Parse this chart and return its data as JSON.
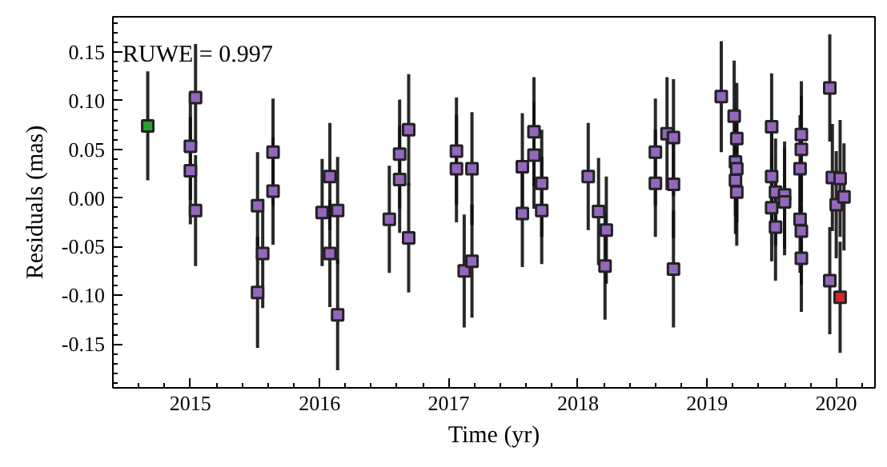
{
  "chart_data": {
    "type": "scatter",
    "xlabel": "Time (yr)",
    "ylabel": "Residuals (mas)",
    "annotations": [
      "RUWE = 0.997"
    ],
    "xlim": [
      2014.4,
      2020.3
    ],
    "xticks": [
      2015,
      2016,
      2017,
      2018,
      2019,
      2020
    ],
    "ylim": [
      -0.195,
      0.186
    ],
    "yticks": [
      -0.15,
      {
        "value": -0.1,
        "label": "-0.10"
      },
      -0.05,
      {
        "value": 0.0,
        "label": "0.00"
      },
      0.05,
      {
        "value": 0.1,
        "label": "0.10"
      },
      0.15
    ],
    "marker": "square",
    "series": [
      {
        "color": "#2ca02c",
        "x": [
          2014.67
        ],
        "values": [
          0.074
        ],
        "errors": [
          0.056
        ]
      },
      {
        "color": "#9467bd",
        "x": [
          2015.0,
          2015.0,
          2015.04,
          2015.04,
          2015.52,
          2015.52,
          2015.56,
          2015.64,
          2015.64,
          2016.02,
          2016.08,
          2016.08,
          2016.14,
          2016.14,
          2016.54,
          2016.62,
          2016.62,
          2016.69,
          2016.69,
          2017.06,
          2017.06,
          2017.12,
          2017.18,
          2017.18,
          2017.57,
          2017.57,
          2017.66,
          2017.66,
          2017.72,
          2017.72,
          2018.08,
          2018.16,
          2018.21,
          2018.22,
          2018.6,
          2018.6,
          2018.69,
          2018.74,
          2018.74,
          2018.74,
          2019.11,
          2019.21,
          2019.22,
          2019.22,
          2019.23,
          2019.23,
          2019.23,
          2019.5,
          2019.5,
          2019.5,
          2019.53,
          2019.53,
          2019.6,
          2019.6,
          2019.73,
          2019.73,
          2019.72,
          2019.72,
          2019.73,
          2019.73,
          2019.95,
          2019.97,
          2020.0,
          2019.95,
          2020.03,
          2020.06
        ],
        "values": [
          0.053,
          0.028,
          0.103,
          -0.013,
          -0.097,
          -0.008,
          -0.057,
          0.047,
          0.007,
          -0.015,
          0.022,
          -0.057,
          -0.013,
          -0.12,
          -0.022,
          0.045,
          0.019,
          0.07,
          -0.041,
          0.048,
          0.03,
          -0.075,
          0.03,
          -0.065,
          -0.016,
          0.032,
          0.068,
          0.044,
          0.015,
          -0.013,
          0.022,
          -0.014,
          -0.07,
          -0.033,
          0.047,
          0.015,
          0.066,
          0.062,
          0.014,
          -0.073,
          0.104,
          0.084,
          0.037,
          0.018,
          0.061,
          0.03,
          0.006,
          0.073,
          0.022,
          -0.01,
          0.006,
          -0.03,
          0.003,
          -0.004,
          0.065,
          0.05,
          0.03,
          -0.022,
          -0.034,
          -0.062,
          0.113,
          0.021,
          -0.007,
          -0.085,
          0.02,
          0.001
        ],
        "errors": [
          0.055,
          0.055,
          0.055,
          0.057,
          0.057,
          0.055,
          0.056,
          0.055,
          0.055,
          0.055,
          0.055,
          0.055,
          0.055,
          0.057,
          0.055,
          0.056,
          0.055,
          0.057,
          0.056,
          0.055,
          0.055,
          0.058,
          0.058,
          0.058,
          0.055,
          0.055,
          0.056,
          0.055,
          0.055,
          0.055,
          0.055,
          0.055,
          0.055,
          0.055,
          0.055,
          0.055,
          0.058,
          0.06,
          0.055,
          0.06,
          0.057,
          0.057,
          0.055,
          0.055,
          0.057,
          0.055,
          0.055,
          0.055,
          0.055,
          0.055,
          0.055,
          0.055,
          0.055,
          0.055,
          0.055,
          0.055,
          0.055,
          0.055,
          0.055,
          0.055,
          0.055,
          0.055,
          0.055,
          0.055,
          0.06,
          0.055
        ]
      },
      {
        "color": "#d62728",
        "x": [
          2020.03
        ],
        "values": [
          -0.102
        ],
        "errors": [
          0.057
        ]
      }
    ]
  }
}
